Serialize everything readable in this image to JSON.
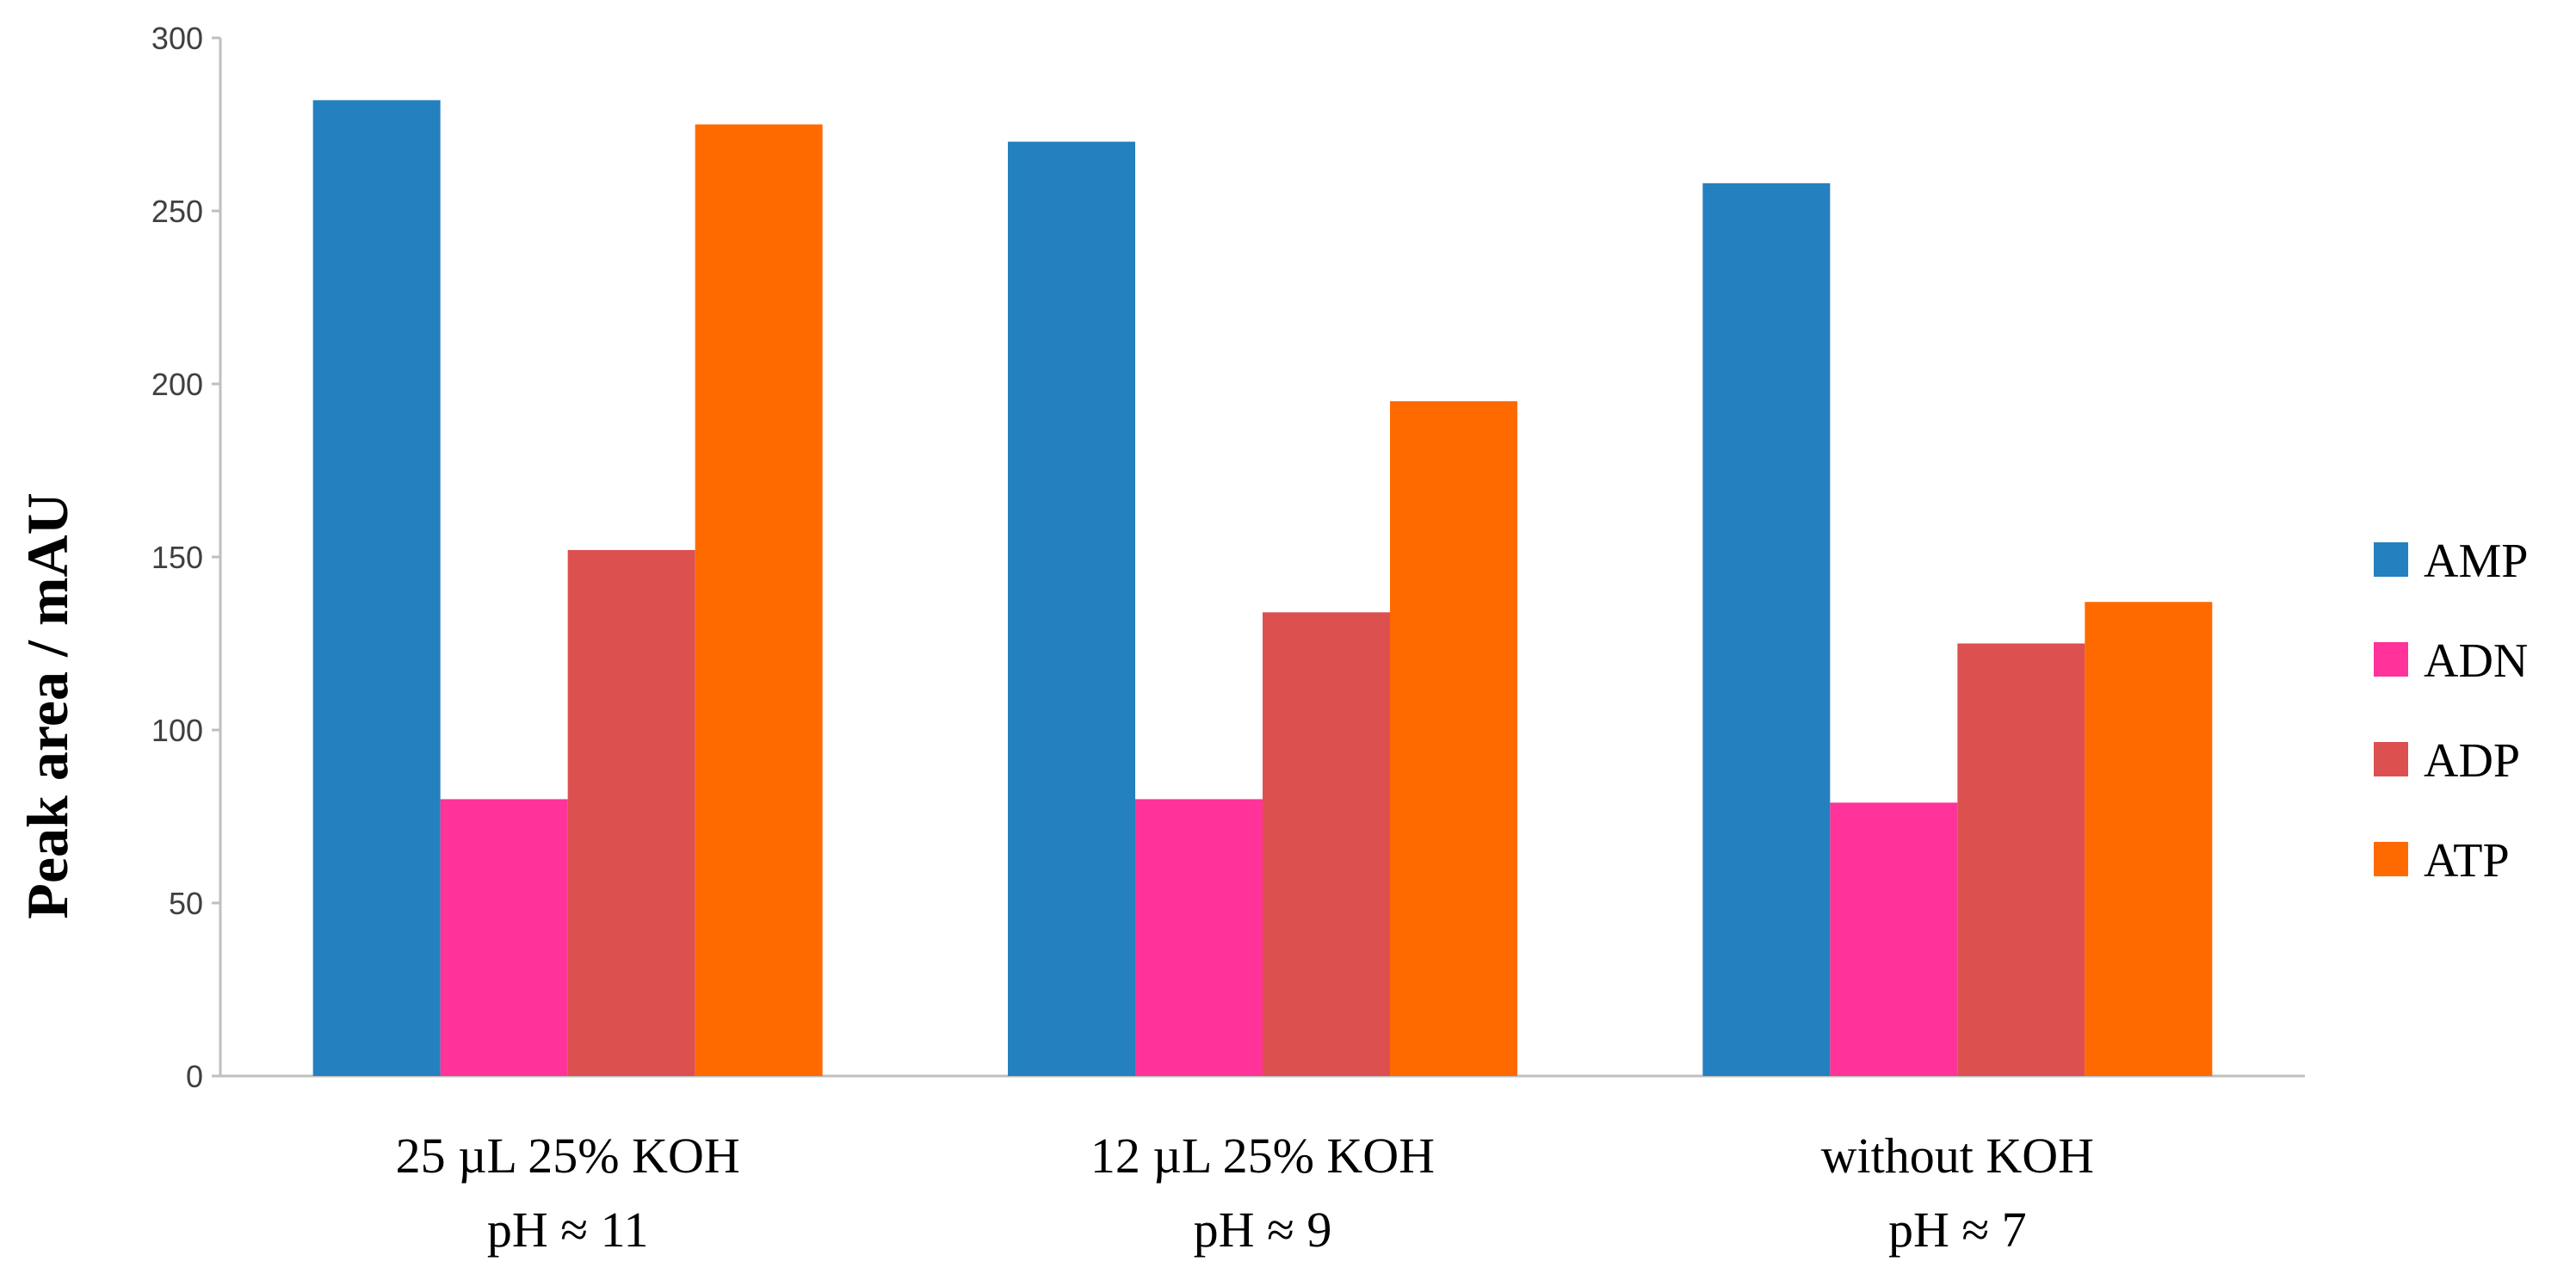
{
  "chart_data": {
    "type": "bar",
    "title": "",
    "xlabel": "",
    "ylabel": "Peak area / mAU",
    "ylim": [
      0,
      300
    ],
    "yticks": [
      0,
      50,
      100,
      150,
      200,
      250,
      300
    ],
    "grid": false,
    "legend_position": "right",
    "categories": [
      {
        "line1": "25 µL 25% KOH",
        "line2": "pH ≈ 11"
      },
      {
        "line1": "12 µL 25% KOH",
        "line2": "pH ≈ 9"
      },
      {
        "line1": "without KOH",
        "line2": "pH ≈ 7"
      }
    ],
    "series": [
      {
        "name": "AMP",
        "color": "#2480BF",
        "values": [
          282,
          270,
          258
        ]
      },
      {
        "name": "ADN",
        "color": "#FF3399",
        "values": [
          80,
          80,
          79
        ]
      },
      {
        "name": "ADP",
        "color": "#DC5050",
        "values": [
          152,
          134,
          125
        ]
      },
      {
        "name": "ATP",
        "color": "#FF6A00",
        "values": [
          275,
          195,
          137
        ]
      }
    ]
  }
}
